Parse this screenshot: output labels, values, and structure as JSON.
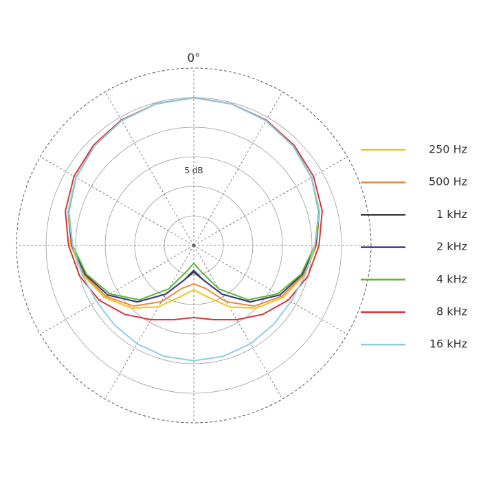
{
  "chart_data": {
    "type": "polar",
    "annotation": "5 dB",
    "theta": [
      0,
      15,
      30,
      45,
      60,
      75,
      90,
      105,
      120,
      135,
      150,
      165,
      180,
      195,
      210,
      225,
      240,
      255,
      270,
      285,
      300,
      315,
      330,
      345
    ],
    "rlim": [
      -25,
      5
    ],
    "rticks": [
      -20,
      -15,
      -10,
      -5,
      0,
      5
    ],
    "thetaticks": [
      {
        "value": 0,
        "label": "0°"
      },
      30,
      60,
      90,
      120,
      150,
      180,
      210,
      240,
      270,
      300,
      330
    ],
    "series": [
      {
        "name": "250 Hz",
        "color": "#f2c51a",
        "values": [
          0,
          -0.2,
          -0.6,
          -1.2,
          -2,
          -3,
          -4.2,
          -5.6,
          -7.5,
          -10,
          -13,
          -16,
          -17.5,
          -16,
          -13,
          -10,
          -7.5,
          -5.6,
          -4.2,
          -3,
          -2,
          -1.2,
          -0.6,
          -0.2
        ]
      },
      {
        "name": "500 Hz",
        "color": "#f0883a",
        "values": [
          0,
          -0.2,
          -0.6,
          -1.2,
          -2,
          -3,
          -4.3,
          -5.8,
          -7.8,
          -10.5,
          -14,
          -17.5,
          -18.5,
          -17.5,
          -14,
          -10.5,
          -7.8,
          -5.8,
          -4.3,
          -3,
          -2,
          -1.2,
          -0.6,
          -0.2
        ]
      },
      {
        "name": "1 kHz",
        "color": "#333333",
        "values": [
          0,
          -0.2,
          -0.6,
          -1.2,
          -2,
          -3,
          -4.4,
          -6,
          -8.2,
          -11.5,
          -15.5,
          -19,
          -20.5,
          -19,
          -15.5,
          -11.5,
          -8.2,
          -6,
          -4.4,
          -3,
          -2,
          -1.2,
          -0.6,
          -0.2
        ]
      },
      {
        "name": "2 kHz",
        "color": "#3a3a8c",
        "values": [
          0,
          -0.2,
          -0.6,
          -1.2,
          -2,
          -3,
          -4.4,
          -6,
          -8.2,
          -11.5,
          -15.5,
          -19,
          -20.8,
          -19,
          -15.5,
          -11.5,
          -8.2,
          -6,
          -4.4,
          -3,
          -2,
          -1.2,
          -0.6,
          -0.2
        ]
      },
      {
        "name": "4 kHz",
        "color": "#5cb82e",
        "values": [
          0,
          -0.2,
          -0.6,
          -1.2,
          -2,
          -3.1,
          -4.5,
          -6.2,
          -8.6,
          -12,
          -16.5,
          -20.5,
          -22,
          -20.5,
          -16.5,
          -12,
          -8.6,
          -6.2,
          -4.5,
          -3.1,
          -2,
          -1.2,
          -0.6,
          -0.2
        ]
      },
      {
        "name": "8 kHz",
        "color": "#d9343a",
        "values": [
          0,
          -0.2,
          -0.5,
          -1,
          -1.6,
          -2.5,
          -3.8,
          -5,
          -6.5,
          -8.5,
          -10.5,
          -12,
          -12.8,
          -12,
          -10.5,
          -8.5,
          -6.5,
          -5,
          -3.8,
          -2.5,
          -1.6,
          -1,
          -0.5,
          -0.2
        ]
      },
      {
        "name": "16 kHz",
        "color": "#8ccde6",
        "values": [
          0,
          -0.2,
          -0.6,
          -1.2,
          -2,
          -3,
          -4.5,
          -5.5,
          -6,
          -6,
          -5.8,
          -5.6,
          -5.5,
          -5.6,
          -5.8,
          -6,
          -6,
          -5.5,
          -4.5,
          -3,
          -2,
          -1.2,
          -0.6,
          -0.2
        ]
      }
    ]
  }
}
